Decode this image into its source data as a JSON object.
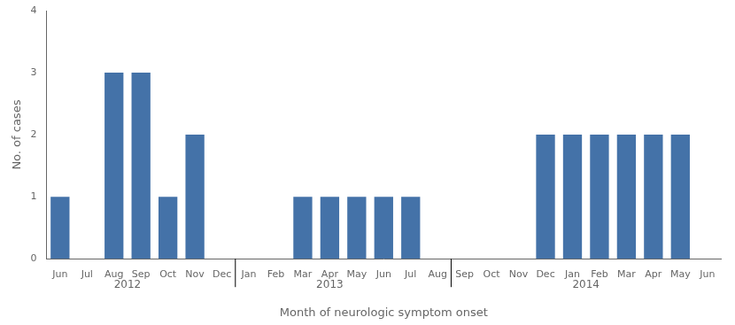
{
  "chart_data": {
    "type": "bar",
    "categories": [
      "Jun",
      "Jul",
      "Aug",
      "Sep",
      "Oct",
      "Nov",
      "Dec",
      "Jan",
      "Feb",
      "Mar",
      "Apr",
      "May",
      "Jun",
      "Jul",
      "Aug",
      "Sep",
      "Oct",
      "Nov",
      "Dec",
      "Jan",
      "Feb",
      "Mar",
      "Apr",
      "May",
      "Jun"
    ],
    "values": [
      1,
      0,
      3,
      3,
      1,
      2,
      0,
      0,
      0,
      1,
      1,
      1,
      1,
      1,
      0,
      0,
      0,
      0,
      2,
      2,
      2,
      2,
      2,
      2,
      0
    ],
    "color": "#4472a8",
    "xlabel": "Month of neurologic symptom onset",
    "ylabel": "No. of cases",
    "ylim": [
      0,
      4
    ],
    "yticks": [
      0,
      1,
      2,
      3,
      4
    ],
    "grid": false,
    "annotations": [
      {
        "text": "2012",
        "x": 2.5
      },
      {
        "text": "2013",
        "x": 10.0
      },
      {
        "text": "2014",
        "x": 19.5
      },
      {
        "type": "line",
        "x": 6.5
      },
      {
        "type": "line",
        "x": 14.5
      }
    ]
  }
}
